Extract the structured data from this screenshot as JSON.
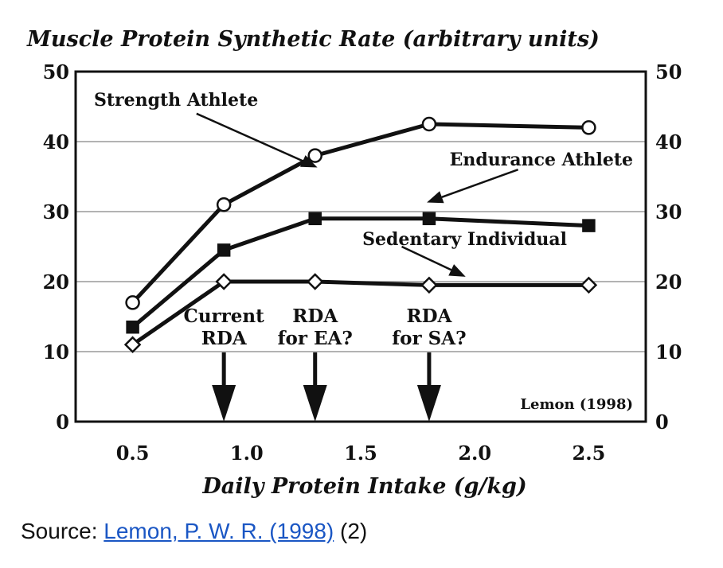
{
  "chart_data": {
    "type": "line",
    "title": "Muscle Protein Synthetic Rate (arbitrary units)",
    "xlabel": "Daily Protein Intake (g/kg)",
    "ylabel": "",
    "xlim": [
      0.25,
      2.75
    ],
    "ylim": [
      0,
      50
    ],
    "x_ticks": [
      "0.5",
      "1.0",
      "1.5",
      "2.0",
      "2.5"
    ],
    "x_tick_values": [
      0.5,
      1.0,
      1.5,
      2.0,
      2.5
    ],
    "y_ticks": [
      "0",
      "10",
      "20",
      "30",
      "40",
      "50"
    ],
    "y_tick_values": [
      0,
      10,
      20,
      30,
      40,
      50
    ],
    "grid": "horizontal",
    "series": [
      {
        "name": "Strength Athlete",
        "marker": "open-circle",
        "x": [
          0.5,
          0.9,
          1.3,
          1.8,
          2.5
        ],
        "y": [
          17,
          31,
          38,
          42.5,
          42
        ]
      },
      {
        "name": "Endurance Athlete",
        "marker": "filled-square",
        "x": [
          0.5,
          0.9,
          1.3,
          1.8,
          2.5
        ],
        "y": [
          13.5,
          24.5,
          29,
          29,
          28
        ]
      },
      {
        "name": "Sedentary Individual",
        "marker": "open-diamond",
        "x": [
          0.5,
          0.9,
          1.3,
          1.8,
          2.5
        ],
        "y": [
          11,
          20,
          20,
          19.5,
          19.5
        ]
      }
    ],
    "annotations": [
      {
        "lines": [
          "Current",
          "RDA"
        ],
        "x": 0.9
      },
      {
        "lines": [
          "RDA",
          "for EA?"
        ],
        "x": 1.3
      },
      {
        "lines": [
          "RDA",
          "for SA?"
        ],
        "x": 1.8
      }
    ],
    "credit": "Lemon (1998)"
  },
  "caption": {
    "prefix": "Source: ",
    "link_text": "Lemon, P. W. R. (1998)",
    "suffix": " (2)",
    "link_color": "#1a56c4"
  }
}
